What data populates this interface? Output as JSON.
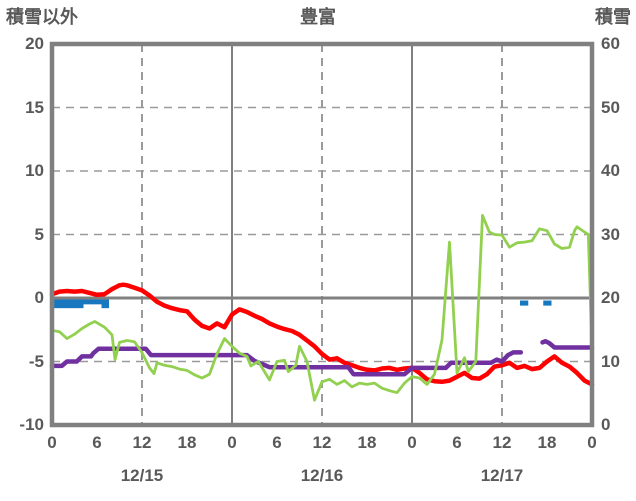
{
  "header": {
    "left_axis_title": "積雪以外",
    "title": "豊富",
    "right_axis_title": "積雪"
  },
  "chart_data": {
    "type": "line",
    "title": "豊富",
    "left_axis": {
      "label": "積雪以外",
      "ticks": [
        "20",
        "15",
        "10",
        "5",
        "0",
        "-5",
        "-10"
      ],
      "tick_values": [
        20,
        15,
        10,
        5,
        0,
        -5,
        -10
      ],
      "range": [
        -10,
        20
      ]
    },
    "right_axis": {
      "label": "積雪",
      "ticks": [
        "60",
        "50",
        "40",
        "30",
        "20",
        "10",
        "0"
      ],
      "tick_values": [
        60,
        50,
        40,
        30,
        20,
        10,
        0
      ],
      "range": [
        0,
        60
      ]
    },
    "x_axis": {
      "range_hours": [
        0,
        72
      ],
      "tick_hours": [
        0,
        6,
        12,
        18,
        24,
        30,
        36,
        42,
        48,
        54,
        60,
        66,
        72
      ],
      "tick_labels": [
        "0",
        "6",
        "12",
        "18",
        "0",
        "6",
        "12",
        "18",
        "0",
        "6",
        "12",
        "18",
        "0"
      ],
      "date_labels": [
        {
          "text": "12/15",
          "hour": 12
        },
        {
          "text": "12/16",
          "hour": 36
        },
        {
          "text": "12/17",
          "hour": 60
        }
      ]
    },
    "grid": {
      "h_dashed_left_values": [
        15,
        10,
        5,
        -5
      ],
      "h_solid_left_values": [
        0
      ],
      "v_dashed_hours": [
        12,
        36,
        60
      ],
      "v_solid_hours": [
        24,
        48
      ]
    },
    "colors": {
      "red_line": "#FF0000",
      "green_line": "#92D050",
      "purple_line": "#7030A0",
      "blue_bars": "#1878BF",
      "axis_gray": "#808080",
      "grid_gray": "#9A9A9A",
      "text_gray": "#595959"
    },
    "series": [
      {
        "name": "red-line",
        "axis": "left",
        "color": "#FF0000",
        "width": 4.5,
        "points": [
          [
            0,
            0.3
          ],
          [
            1,
            0.5
          ],
          [
            2,
            0.55
          ],
          [
            3,
            0.5
          ],
          [
            4,
            0.55
          ],
          [
            5,
            0.4
          ],
          [
            6,
            0.25
          ],
          [
            7,
            0.3
          ],
          [
            8,
            0.7
          ],
          [
            9,
            1.0
          ],
          [
            9.5,
            1.05
          ],
          [
            10,
            1.0
          ],
          [
            11,
            0.8
          ],
          [
            12,
            0.6
          ],
          [
            13,
            0.2
          ],
          [
            14,
            -0.3
          ],
          [
            15,
            -0.6
          ],
          [
            16,
            -0.8
          ],
          [
            17,
            -0.95
          ],
          [
            18,
            -1.05
          ],
          [
            19,
            -1.7
          ],
          [
            20,
            -2.2
          ],
          [
            21,
            -2.4
          ],
          [
            22,
            -2.0
          ],
          [
            23,
            -2.3
          ],
          [
            24,
            -1.3
          ],
          [
            25,
            -0.9
          ],
          [
            26,
            -1.1
          ],
          [
            27,
            -1.4
          ],
          [
            28,
            -1.65
          ],
          [
            29,
            -2.0
          ],
          [
            30,
            -2.25
          ],
          [
            31,
            -2.45
          ],
          [
            32,
            -2.6
          ],
          [
            33,
            -2.9
          ],
          [
            34,
            -3.35
          ],
          [
            35,
            -3.8
          ],
          [
            36,
            -4.4
          ],
          [
            37,
            -4.85
          ],
          [
            38,
            -4.75
          ],
          [
            39,
            -5.1
          ],
          [
            40,
            -5.3
          ],
          [
            41,
            -5.5
          ],
          [
            42,
            -5.65
          ],
          [
            43,
            -5.7
          ],
          [
            44,
            -5.55
          ],
          [
            45,
            -5.5
          ],
          [
            46,
            -5.65
          ],
          [
            47,
            -5.55
          ],
          [
            48,
            -5.5
          ],
          [
            49,
            -5.9
          ],
          [
            50,
            -6.4
          ],
          [
            51,
            -6.55
          ],
          [
            52,
            -6.6
          ],
          [
            53,
            -6.5
          ],
          [
            54,
            -6.2
          ],
          [
            55,
            -5.9
          ],
          [
            56,
            -6.3
          ],
          [
            57,
            -6.35
          ],
          [
            58,
            -6.0
          ],
          [
            59,
            -5.4
          ],
          [
            60,
            -5.3
          ],
          [
            61,
            -5.1
          ],
          [
            62,
            -5.5
          ],
          [
            63,
            -5.35
          ],
          [
            64,
            -5.6
          ],
          [
            65,
            -5.5
          ],
          [
            66,
            -5.0
          ],
          [
            67,
            -4.6
          ],
          [
            68,
            -5.1
          ],
          [
            69,
            -5.4
          ],
          [
            70,
            -5.9
          ],
          [
            71,
            -6.5
          ],
          [
            72,
            -6.8
          ]
        ]
      },
      {
        "name": "purple-line",
        "axis": "left",
        "color": "#7030A0",
        "width": 4.5,
        "segments": [
          [
            [
              0,
              -5.35
            ],
            [
              1.3,
              -5.35
            ],
            [
              2,
              -5.0
            ],
            [
              3.3,
              -5.0
            ],
            [
              4,
              -4.6
            ],
            [
              5.2,
              -4.6
            ],
            [
              5.5,
              -4.35
            ],
            [
              6.2,
              -4.0
            ],
            [
              12.5,
              -4.0
            ],
            [
              13.2,
              -4.5
            ],
            [
              26,
              -4.5
            ],
            [
              27,
              -4.95
            ],
            [
              28,
              -5.2
            ],
            [
              29,
              -5.45
            ],
            [
              39.5,
              -5.45
            ],
            [
              40.2,
              -6.0
            ],
            [
              47,
              -6.0
            ],
            [
              48,
              -5.5
            ],
            [
              52.5,
              -5.5
            ],
            [
              53.2,
              -5.1
            ],
            [
              58.5,
              -5.1
            ],
            [
              59.3,
              -4.85
            ],
            [
              60,
              -5.0
            ],
            [
              60.8,
              -4.5
            ],
            [
              61.5,
              -4.28
            ],
            [
              62.5,
              -4.28
            ]
          ],
          [
            [
              65.4,
              -3.5
            ],
            [
              65.8,
              -3.4
            ],
            [
              66.3,
              -3.55
            ],
            [
              67,
              -3.9
            ],
            [
              72,
              -3.9
            ]
          ]
        ]
      },
      {
        "name": "green-line",
        "axis": "right",
        "color": "#92D050",
        "width": 2.8,
        "points": [
          [
            0,
            14.9
          ],
          [
            1,
            14.7
          ],
          [
            2,
            13.6
          ],
          [
            3,
            14.3
          ],
          [
            4,
            15.2
          ],
          [
            5,
            15.9
          ],
          [
            5.7,
            16.3
          ],
          [
            7,
            15.4
          ],
          [
            8,
            14.2
          ],
          [
            8.4,
            10.3
          ],
          [
            9,
            13.0
          ],
          [
            10,
            13.3
          ],
          [
            11,
            13.1
          ],
          [
            12,
            11.4
          ],
          [
            13,
            9.0
          ],
          [
            13.6,
            8.1
          ],
          [
            14,
            9.8
          ],
          [
            15,
            9.4
          ],
          [
            16,
            9.2
          ],
          [
            17,
            8.8
          ],
          [
            18,
            8.6
          ],
          [
            19,
            7.9
          ],
          [
            20,
            7.4
          ],
          [
            21,
            8.0
          ],
          [
            22,
            11.2
          ],
          [
            23,
            13.6
          ],
          [
            24,
            12.4
          ],
          [
            25,
            11.3
          ],
          [
            26,
            10.8
          ],
          [
            26.5,
            9.3
          ],
          [
            27.5,
            10.0
          ],
          [
            29,
            7.1
          ],
          [
            30,
            10.0
          ],
          [
            31,
            10.2
          ],
          [
            31.5,
            8.4
          ],
          [
            32.5,
            9.4
          ],
          [
            33,
            12.4
          ],
          [
            34,
            10.0
          ],
          [
            35,
            3.9
          ],
          [
            36,
            6.8
          ],
          [
            37,
            7.2
          ],
          [
            38,
            6.4
          ],
          [
            39,
            7.0
          ],
          [
            40,
            6.0
          ],
          [
            41,
            6.6
          ],
          [
            42,
            6.4
          ],
          [
            43,
            6.6
          ],
          [
            44,
            5.8
          ],
          [
            45,
            5.4
          ],
          [
            46,
            5.1
          ],
          [
            47,
            6.6
          ],
          [
            48,
            7.6
          ],
          [
            49,
            7.4
          ],
          [
            50,
            6.4
          ],
          [
            51,
            8.0
          ],
          [
            52,
            13.4
          ],
          [
            53,
            28.8
          ],
          [
            54,
            8.2
          ],
          [
            55,
            10.6
          ],
          [
            55.5,
            8.4
          ],
          [
            56.5,
            10.0
          ],
          [
            57.4,
            33.0
          ],
          [
            58.3,
            30.4
          ],
          [
            59,
            30.0
          ],
          [
            60,
            29.9
          ],
          [
            61,
            28.0
          ],
          [
            62,
            28.7
          ],
          [
            63,
            28.8
          ],
          [
            64,
            29.0
          ],
          [
            65,
            30.9
          ],
          [
            66,
            30.6
          ],
          [
            67,
            28.5
          ],
          [
            68,
            27.8
          ],
          [
            69,
            28.0
          ],
          [
            69.7,
            30.7
          ],
          [
            70,
            31.2
          ],
          [
            71,
            30.4
          ],
          [
            71.5,
            30.0
          ],
          [
            72,
            12.0
          ]
        ]
      },
      {
        "name": "blue-bars",
        "axis": "left",
        "color": "#1878BF",
        "type": "bar",
        "bars": [
          {
            "from_hour": 0.1,
            "to_hour": 4.2,
            "top": -0.12,
            "bottom": -0.8
          },
          {
            "from_hour": 4.2,
            "to_hour": 6.6,
            "top": -0.12,
            "bottom": -0.5
          },
          {
            "from_hour": 6.6,
            "to_hour": 7.6,
            "top": -0.12,
            "bottom": -0.8
          },
          {
            "from_hour": 62.4,
            "to_hour": 63.5,
            "top": -0.2,
            "bottom": -0.6
          },
          {
            "from_hour": 65.5,
            "to_hour": 66.6,
            "top": -0.2,
            "bottom": -0.6
          }
        ]
      }
    ]
  }
}
